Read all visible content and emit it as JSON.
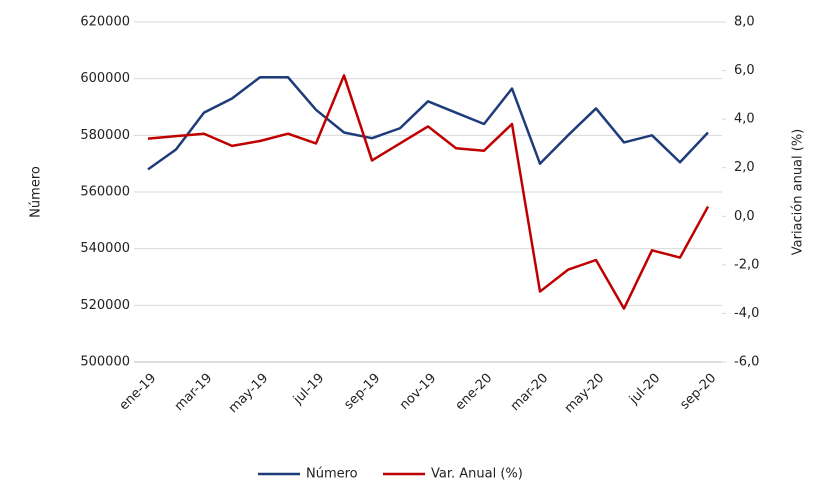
{
  "chart_data": {
    "type": "line",
    "categories": [
      "ene-19",
      null,
      "mar-19",
      null,
      "may-19",
      null,
      "jul-19",
      null,
      "sep-19",
      null,
      "nov-19",
      null,
      "ene-20",
      null,
      "mar-20",
      null,
      "may-20",
      null,
      "jul-20",
      null,
      "sep-20"
    ],
    "series": [
      {
        "name": "Número",
        "color": "#1f3c7a",
        "values": [
          568000,
          575000,
          588000,
          593000,
          600500,
          600500,
          589000,
          581000,
          579000,
          582500,
          592000,
          588000,
          584000,
          596500,
          570000,
          580000,
          589500,
          577500,
          580000,
          570500,
          581000
        ]
      },
      {
        "name": "Var. Anual (%)",
        "color": "#c00000",
        "axis": "y2",
        "values": [
          3.2,
          3.3,
          3.4,
          2.9,
          3.1,
          3.4,
          3.0,
          5.8,
          2.3,
          3.0,
          3.7,
          2.8,
          2.7,
          3.8,
          -3.1,
          -2.2,
          -1.8,
          -3.8,
          -1.4,
          -1.7,
          0.4
        ]
      }
    ],
    "ylabel": "Número",
    "y2label": "Variación anual (%)",
    "ylim": [
      500000,
      620000
    ],
    "yticks": [
      500000,
      520000,
      540000,
      560000,
      580000,
      600000,
      620000
    ],
    "y2lim": [
      -6,
      8
    ],
    "y2ticks": [
      {
        "value": -6,
        "label": "-6,0"
      },
      {
        "value": -4,
        "label": "-4,0"
      },
      {
        "value": -2,
        "label": "-2,0"
      },
      {
        "value": 0,
        "label": "0,0"
      },
      {
        "value": 2,
        "label": "2,0"
      },
      {
        "value": 4,
        "label": "4,0"
      },
      {
        "value": 6,
        "label": "6,0"
      },
      {
        "value": 8,
        "label": "8,0"
      }
    ],
    "grid": true,
    "legend": "bottom"
  }
}
